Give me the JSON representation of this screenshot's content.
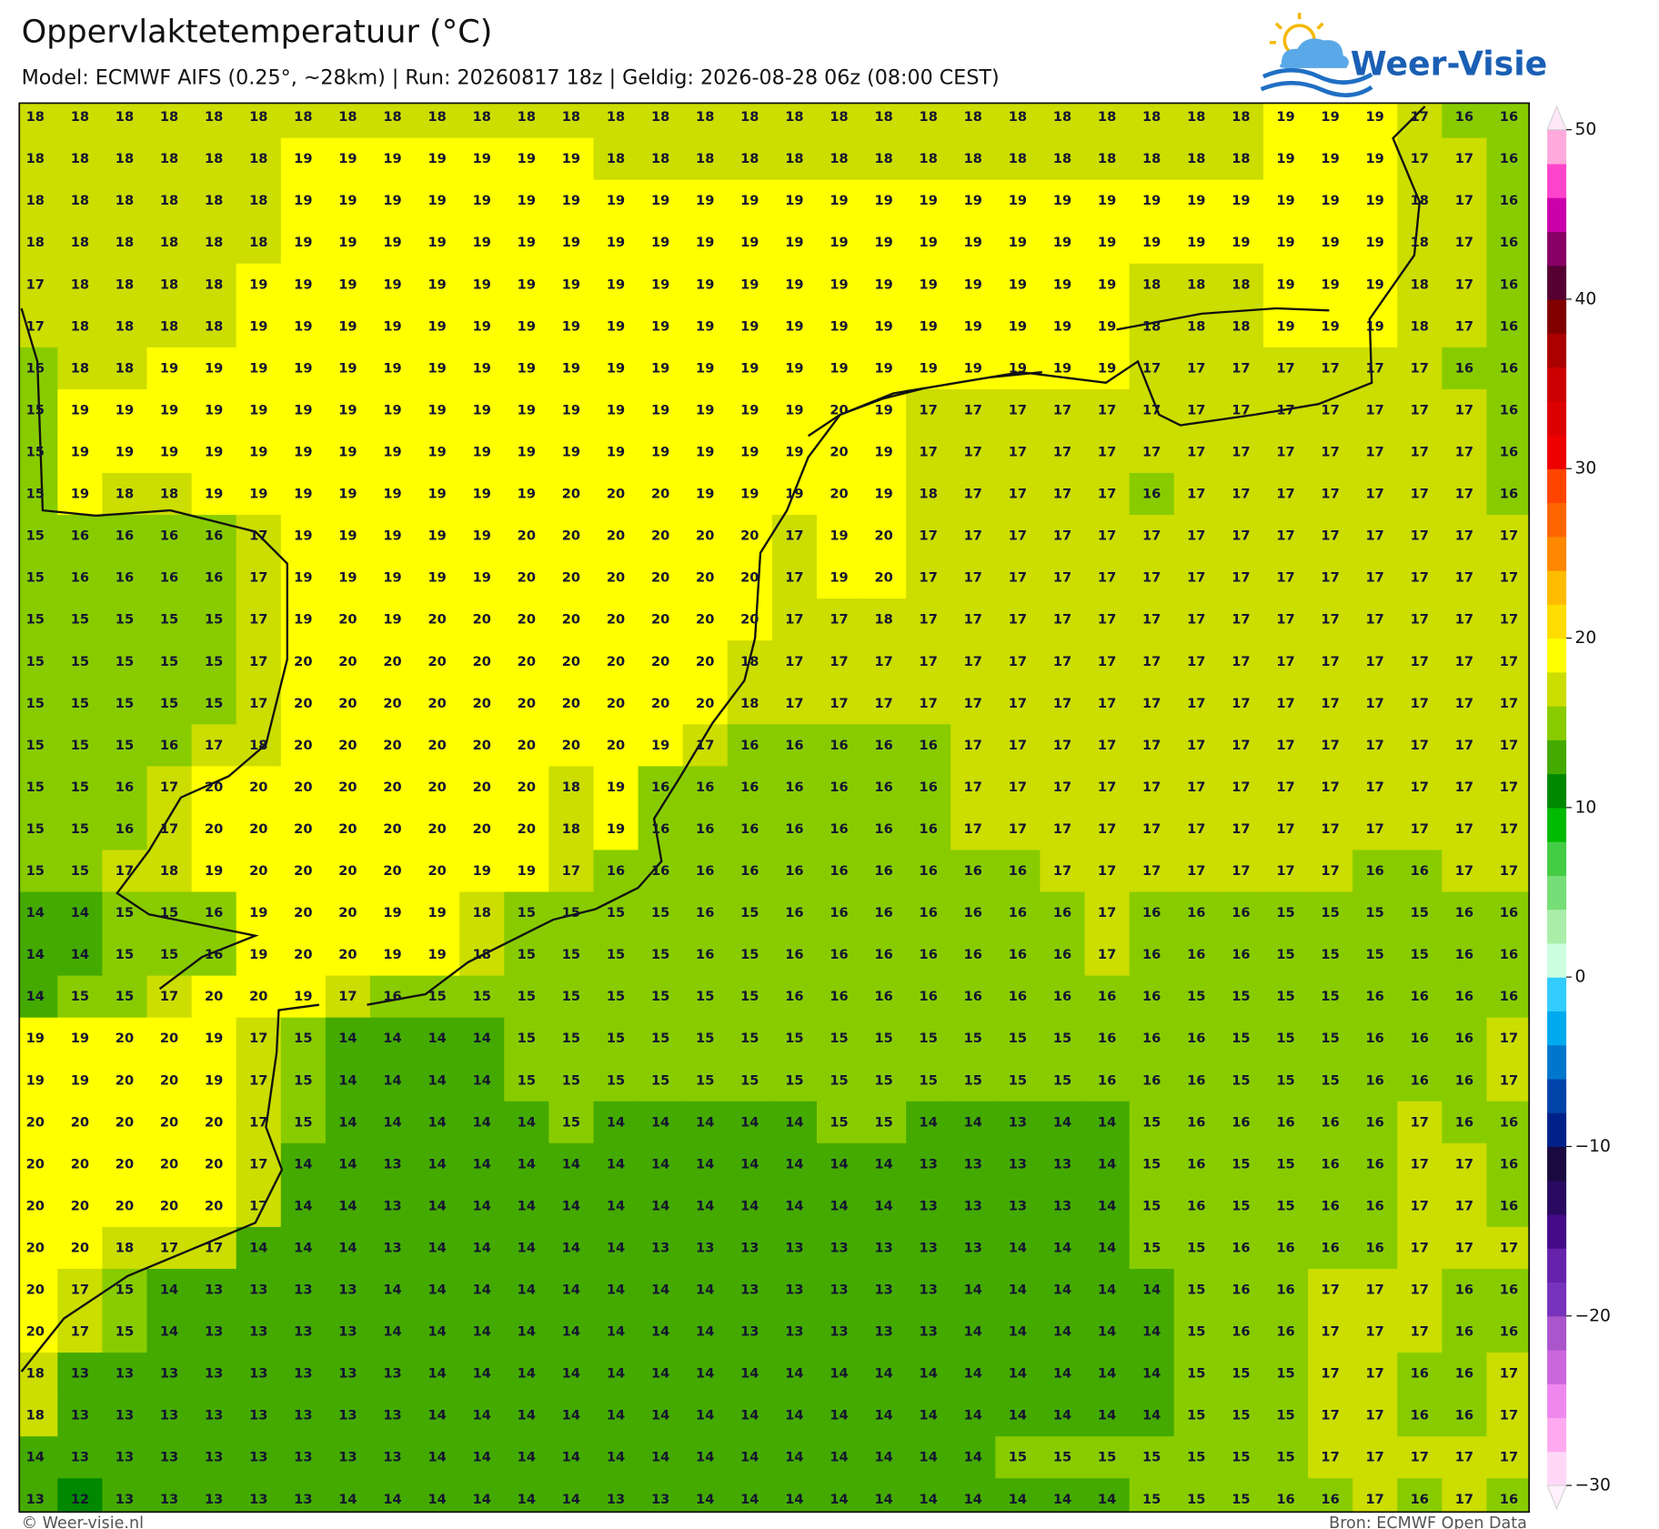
{
  "header": {
    "title": "Oppervlaktetemperatuur (°C)",
    "subtitle": "Model: ECMWF AIFS (0.25°, ~28km)  |  Run: 20260817 18z  |  Geldig: 2026-08-28 06z (08:00 CEST)"
  },
  "logo": "Weer-Visie",
  "map": {
    "values": [
      [
        18,
        18,
        18,
        18,
        18,
        18,
        18,
        18,
        18,
        18,
        18,
        18,
        18,
        18,
        18,
        18,
        18,
        18,
        18,
        18,
        18,
        18,
        18,
        18,
        18,
        18,
        18,
        18,
        19,
        19,
        19,
        17,
        16,
        16
      ],
      [
        18,
        18,
        18,
        18,
        18,
        18,
        19,
        19,
        19,
        19,
        19,
        19,
        19,
        18,
        18,
        18,
        18,
        18,
        18,
        18,
        18,
        18,
        18,
        18,
        18,
        18,
        18,
        18,
        19,
        19,
        19,
        17,
        17,
        16
      ],
      [
        18,
        18,
        18,
        18,
        18,
        18,
        19,
        19,
        19,
        19,
        19,
        19,
        19,
        19,
        19,
        19,
        19,
        19,
        19,
        19,
        19,
        19,
        19,
        19,
        19,
        19,
        19,
        19,
        19,
        19,
        19,
        18,
        17,
        16
      ],
      [
        18,
        18,
        18,
        18,
        18,
        18,
        19,
        19,
        19,
        19,
        19,
        19,
        19,
        19,
        19,
        19,
        19,
        19,
        19,
        19,
        19,
        19,
        19,
        19,
        19,
        19,
        19,
        19,
        19,
        19,
        19,
        18,
        17,
        16
      ],
      [
        17,
        18,
        18,
        18,
        18,
        19,
        19,
        19,
        19,
        19,
        19,
        19,
        19,
        19,
        19,
        19,
        19,
        19,
        19,
        19,
        19,
        19,
        19,
        19,
        19,
        18,
        18,
        18,
        19,
        19,
        19,
        18,
        17,
        16
      ],
      [
        17,
        18,
        18,
        18,
        18,
        19,
        19,
        19,
        19,
        19,
        19,
        19,
        19,
        19,
        19,
        19,
        19,
        19,
        19,
        19,
        19,
        19,
        19,
        19,
        19,
        18,
        18,
        18,
        19,
        19,
        19,
        18,
        17,
        16
      ],
      [
        16,
        18,
        18,
        19,
        19,
        19,
        19,
        19,
        19,
        19,
        19,
        19,
        19,
        19,
        19,
        19,
        19,
        19,
        19,
        19,
        19,
        19,
        19,
        19,
        19,
        17,
        17,
        17,
        17,
        17,
        17,
        17,
        16,
        16
      ],
      [
        15,
        19,
        19,
        19,
        19,
        19,
        19,
        19,
        19,
        19,
        19,
        19,
        19,
        19,
        19,
        19,
        19,
        19,
        20,
        19,
        17,
        17,
        17,
        17,
        17,
        17,
        17,
        17,
        17,
        17,
        17,
        17,
        17,
        16
      ],
      [
        15,
        19,
        19,
        19,
        19,
        19,
        19,
        19,
        19,
        19,
        19,
        19,
        19,
        19,
        19,
        19,
        19,
        19,
        20,
        19,
        17,
        17,
        17,
        17,
        17,
        17,
        17,
        17,
        17,
        17,
        17,
        17,
        17,
        16
      ],
      [
        15,
        19,
        18,
        18,
        19,
        19,
        19,
        19,
        19,
        19,
        19,
        19,
        20,
        20,
        20,
        19,
        19,
        19,
        20,
        19,
        18,
        17,
        17,
        17,
        17,
        16,
        17,
        17,
        17,
        17,
        17,
        17,
        17,
        16
      ],
      [
        15,
        16,
        16,
        16,
        16,
        17,
        19,
        19,
        19,
        19,
        19,
        20,
        20,
        20,
        20,
        20,
        20,
        17,
        19,
        20,
        17,
        17,
        17,
        17,
        17,
        17,
        17,
        17,
        17,
        17,
        17,
        17,
        17,
        17
      ],
      [
        15,
        16,
        16,
        16,
        16,
        17,
        19,
        19,
        19,
        19,
        19,
        20,
        20,
        20,
        20,
        20,
        20,
        17,
        19,
        20,
        17,
        17,
        17,
        17,
        17,
        17,
        17,
        17,
        17,
        17,
        17,
        17,
        17,
        17
      ],
      [
        15,
        15,
        15,
        15,
        15,
        17,
        19,
        20,
        19,
        20,
        20,
        20,
        20,
        20,
        20,
        20,
        20,
        17,
        17,
        18,
        17,
        17,
        17,
        17,
        17,
        17,
        17,
        17,
        17,
        17,
        17,
        17,
        17,
        17
      ],
      [
        15,
        15,
        15,
        15,
        15,
        17,
        20,
        20,
        20,
        20,
        20,
        20,
        20,
        20,
        20,
        20,
        18,
        17,
        17,
        17,
        17,
        17,
        17,
        17,
        17,
        17,
        17,
        17,
        17,
        17,
        17,
        17,
        17,
        17
      ],
      [
        15,
        15,
        15,
        15,
        15,
        17,
        20,
        20,
        20,
        20,
        20,
        20,
        20,
        20,
        20,
        20,
        18,
        17,
        17,
        17,
        17,
        17,
        17,
        17,
        17,
        17,
        17,
        17,
        17,
        17,
        17,
        17,
        17,
        17
      ],
      [
        15,
        15,
        15,
        16,
        17,
        18,
        20,
        20,
        20,
        20,
        20,
        20,
        20,
        20,
        19,
        17,
        16,
        16,
        16,
        16,
        16,
        17,
        17,
        17,
        17,
        17,
        17,
        17,
        17,
        17,
        17,
        17,
        17,
        17
      ],
      [
        15,
        15,
        16,
        17,
        20,
        20,
        20,
        20,
        20,
        20,
        20,
        20,
        18,
        19,
        16,
        16,
        16,
        16,
        16,
        16,
        16,
        17,
        17,
        17,
        17,
        17,
        17,
        17,
        17,
        17,
        17,
        17,
        17,
        17
      ],
      [
        15,
        15,
        16,
        17,
        20,
        20,
        20,
        20,
        20,
        20,
        20,
        20,
        18,
        19,
        16,
        16,
        16,
        16,
        16,
        16,
        16,
        17,
        17,
        17,
        17,
        17,
        17,
        17,
        17,
        17,
        17,
        17,
        17,
        17
      ],
      [
        15,
        15,
        17,
        18,
        19,
        20,
        20,
        20,
        20,
        20,
        19,
        19,
        17,
        16,
        16,
        16,
        16,
        16,
        16,
        16,
        16,
        16,
        16,
        17,
        17,
        17,
        17,
        17,
        17,
        17,
        16,
        16,
        17,
        17
      ],
      [
        14,
        14,
        15,
        15,
        16,
        19,
        20,
        20,
        19,
        19,
        18,
        15,
        15,
        15,
        15,
        16,
        15,
        16,
        16,
        16,
        16,
        16,
        16,
        16,
        17,
        16,
        16,
        16,
        15,
        15,
        15,
        15,
        16,
        16
      ],
      [
        14,
        14,
        15,
        15,
        16,
        19,
        20,
        20,
        19,
        19,
        18,
        15,
        15,
        15,
        15,
        16,
        15,
        16,
        16,
        16,
        16,
        16,
        16,
        16,
        17,
        16,
        16,
        16,
        15,
        15,
        15,
        15,
        16,
        16
      ],
      [
        14,
        15,
        15,
        17,
        20,
        20,
        19,
        17,
        16,
        15,
        15,
        15,
        15,
        15,
        15,
        15,
        15,
        16,
        16,
        16,
        16,
        16,
        16,
        16,
        16,
        16,
        15,
        15,
        15,
        15,
        16,
        16,
        16,
        16
      ],
      [
        19,
        19,
        20,
        20,
        19,
        17,
        15,
        14,
        14,
        14,
        14,
        15,
        15,
        15,
        15,
        15,
        15,
        15,
        15,
        15,
        15,
        15,
        15,
        15,
        16,
        16,
        16,
        15,
        15,
        15,
        16,
        16,
        16,
        17
      ],
      [
        19,
        19,
        20,
        20,
        19,
        17,
        15,
        14,
        14,
        14,
        14,
        15,
        15,
        15,
        15,
        15,
        15,
        15,
        15,
        15,
        15,
        15,
        15,
        15,
        16,
        16,
        16,
        15,
        15,
        15,
        16,
        16,
        16,
        17
      ],
      [
        20,
        20,
        20,
        20,
        20,
        17,
        15,
        14,
        14,
        14,
        14,
        14,
        15,
        14,
        14,
        14,
        14,
        14,
        15,
        15,
        14,
        14,
        13,
        14,
        14,
        15,
        16,
        16,
        16,
        16,
        16,
        17,
        16,
        16
      ],
      [
        20,
        20,
        20,
        20,
        20,
        17,
        14,
        14,
        13,
        14,
        14,
        14,
        14,
        14,
        14,
        14,
        14,
        14,
        14,
        14,
        13,
        13,
        13,
        13,
        14,
        15,
        16,
        15,
        15,
        16,
        16,
        17,
        17,
        16
      ],
      [
        20,
        20,
        20,
        20,
        20,
        17,
        14,
        14,
        13,
        14,
        14,
        14,
        14,
        14,
        14,
        14,
        14,
        14,
        14,
        14,
        13,
        13,
        13,
        13,
        14,
        15,
        16,
        15,
        15,
        16,
        16,
        17,
        17,
        16
      ],
      [
        20,
        20,
        18,
        17,
        17,
        14,
        14,
        14,
        13,
        14,
        14,
        14,
        14,
        14,
        13,
        13,
        13,
        13,
        13,
        13,
        13,
        13,
        14,
        14,
        14,
        15,
        15,
        16,
        16,
        16,
        16,
        17,
        17,
        17
      ],
      [
        20,
        17,
        15,
        14,
        13,
        13,
        13,
        13,
        14,
        14,
        14,
        14,
        14,
        14,
        14,
        14,
        13,
        13,
        13,
        13,
        13,
        14,
        14,
        14,
        14,
        14,
        15,
        16,
        16,
        17,
        17,
        17,
        16,
        16
      ],
      [
        20,
        17,
        15,
        14,
        13,
        13,
        13,
        13,
        14,
        14,
        14,
        14,
        14,
        14,
        14,
        14,
        13,
        13,
        13,
        13,
        13,
        14,
        14,
        14,
        14,
        14,
        15,
        16,
        16,
        17,
        17,
        17,
        16,
        16
      ],
      [
        18,
        13,
        13,
        13,
        13,
        13,
        13,
        13,
        13,
        14,
        14,
        14,
        14,
        14,
        14,
        14,
        14,
        14,
        14,
        14,
        14,
        14,
        14,
        14,
        14,
        14,
        15,
        15,
        15,
        17,
        17,
        16,
        16,
        17
      ],
      [
        18,
        13,
        13,
        13,
        13,
        13,
        13,
        13,
        13,
        14,
        14,
        14,
        14,
        14,
        14,
        14,
        14,
        14,
        14,
        14,
        14,
        14,
        14,
        14,
        14,
        14,
        15,
        15,
        15,
        17,
        17,
        16,
        16,
        17
      ],
      [
        14,
        13,
        13,
        13,
        13,
        13,
        13,
        13,
        13,
        14,
        14,
        14,
        14,
        14,
        14,
        14,
        14,
        14,
        14,
        14,
        14,
        14,
        15,
        15,
        15,
        15,
        15,
        15,
        15,
        17,
        17,
        17,
        17,
        17
      ],
      [
        13,
        12,
        13,
        13,
        13,
        13,
        13,
        14,
        14,
        14,
        14,
        14,
        14,
        13,
        13,
        14,
        14,
        14,
        14,
        14,
        14,
        14,
        14,
        14,
        14,
        15,
        15,
        15,
        16,
        16,
        17,
        16,
        17,
        16
      ]
    ]
  },
  "colorbar": {
    "lim": [
      -30,
      50
    ],
    "ticks": [
      {
        "value": -30,
        "label": "−30"
      },
      {
        "value": -20,
        "label": "−20"
      },
      {
        "value": -10,
        "label": "−10"
      },
      0,
      10,
      20,
      30,
      40,
      50
    ],
    "colors": [
      "#ffd8f8",
      "#ffaaf0",
      "#ee88ee",
      "#cc66dd",
      "#aa55cc",
      "#7733bb",
      "#6622aa",
      "#440a88",
      "#2a0a60",
      "#1a0a40",
      "#002288",
      "#0044aa",
      "#0077cc",
      "#00aaee",
      "#33ccff",
      "#ccffe0",
      "#aaeeaa",
      "#77dd77",
      "#44cc44",
      "#00bb00",
      "#008800",
      "#44aa00",
      "#88cc00",
      "#ccdd00",
      "#ffff00",
      "#ffdd00",
      "#ffbb00",
      "#ff8800",
      "#ff6600",
      "#ff4400",
      "#ee0000",
      "#dd0000",
      "#cc0000",
      "#aa0000",
      "#800000",
      "#550033",
      "#880066",
      "#cc00aa",
      "#ff44cc",
      "#ffaadd"
    ],
    "under": "#fff0fb",
    "over": "#ffe8f8"
  },
  "footer": {
    "left": "© Weer-visie.nl",
    "right": "Bron: ECMWF Open Data"
  }
}
